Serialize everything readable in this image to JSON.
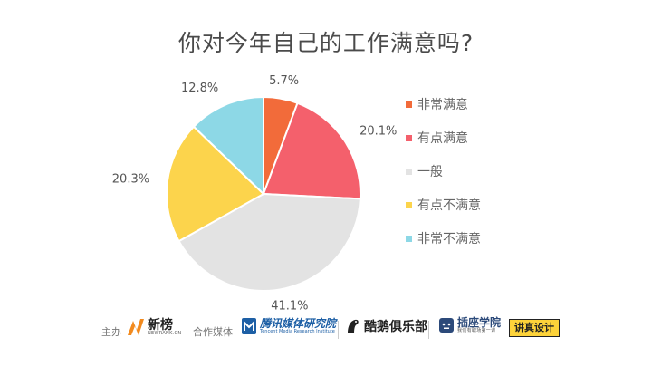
{
  "chart_data": {
    "type": "pie",
    "title": "你对今年自己的工作满意吗?",
    "slices": [
      {
        "label": "非常满意",
        "value": 5.7,
        "value_label": "5.7%",
        "color": "#f26b3a"
      },
      {
        "label": "有点满意",
        "value": 20.1,
        "value_label": "20.1%",
        "color": "#f4606c"
      },
      {
        "label": "一般",
        "value": 41.1,
        "value_label": "41.1%",
        "color": "#e3e3e3"
      },
      {
        "label": "有点不满意",
        "value": 20.3,
        "value_label": "20.3%",
        "color": "#fcd44c"
      },
      {
        "label": "非常不满意",
        "value": 12.8,
        "value_label": "12.8%",
        "color": "#8dd8e6"
      }
    ],
    "legend_position": "right",
    "start_angle": "12 o'clock, clockwise"
  },
  "footer": {
    "host_label": "主办",
    "host_logo": {
      "name": "新榜",
      "sub": "NEWRANK.CN"
    },
    "partner_label": "合作媒体",
    "partners": [
      {
        "name": "腾讯媒体研究院",
        "sub": "Tencent Media Research Institute"
      },
      {
        "name": "酷鹅俱乐部"
      },
      {
        "name": "插座学院",
        "sub": "我们有职场第一课"
      },
      {
        "name": "讲真设计"
      }
    ]
  }
}
